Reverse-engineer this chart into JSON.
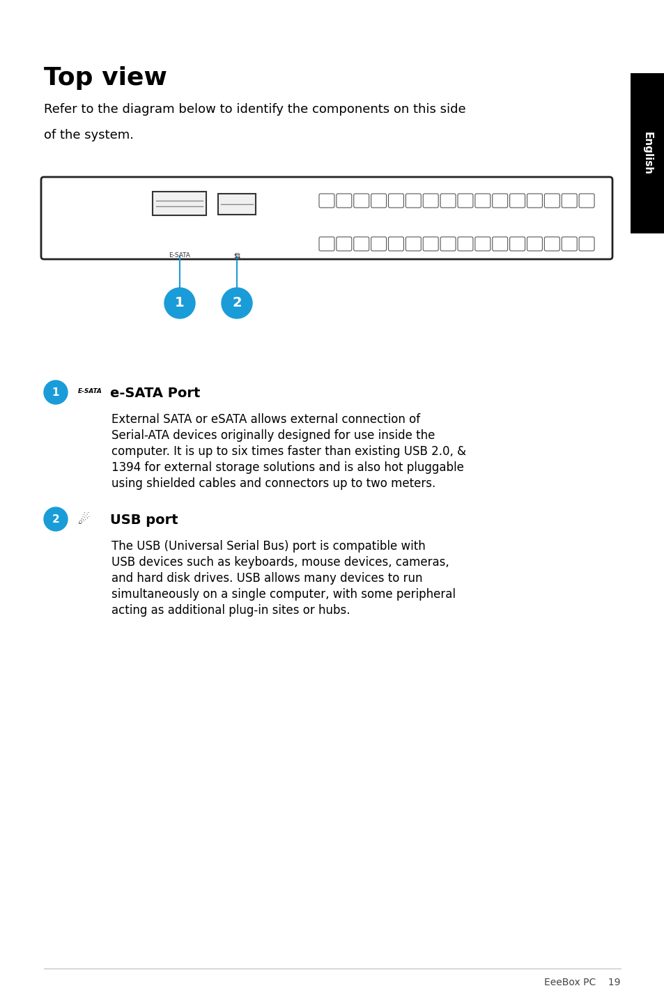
{
  "title": "Top view",
  "subtitle_line1": "Refer to the diagram below to identify the components on this side",
  "subtitle_line2": "of the system.",
  "page_bg": "#ffffff",
  "sidebar_color": "#000000",
  "sidebar_text": "English",
  "circle_color": "#1a9cd8",
  "item1_num": "1",
  "item1_icon": "E-SATA",
  "item1_label": "e-SATA Port",
  "item1_desc_lines": [
    "External SATA or eSATA allows external connection of",
    "Serial-ATA devices originally designed for use inside the",
    "computer. It is up to six times faster than existing USB 2.0, &",
    "1394 for external storage solutions and is also hot pluggable",
    "using shielded cables and connectors up to two meters."
  ],
  "item2_num": "2",
  "item2_label": "USB port",
  "item2_desc_lines": [
    "The USB (Universal Serial Bus) port is compatible with",
    "USB devices such as keyboards, mouse devices, cameras,",
    "and hard disk drives. USB allows many devices to run",
    "simultaneously on a single computer, with some peripheral",
    "acting as additional plug-in sites or hubs."
  ],
  "footer_left": "",
  "footer_right": "EeeBox PC    19",
  "fig_w": 9.54,
  "fig_h": 14.38,
  "dpi": 100
}
